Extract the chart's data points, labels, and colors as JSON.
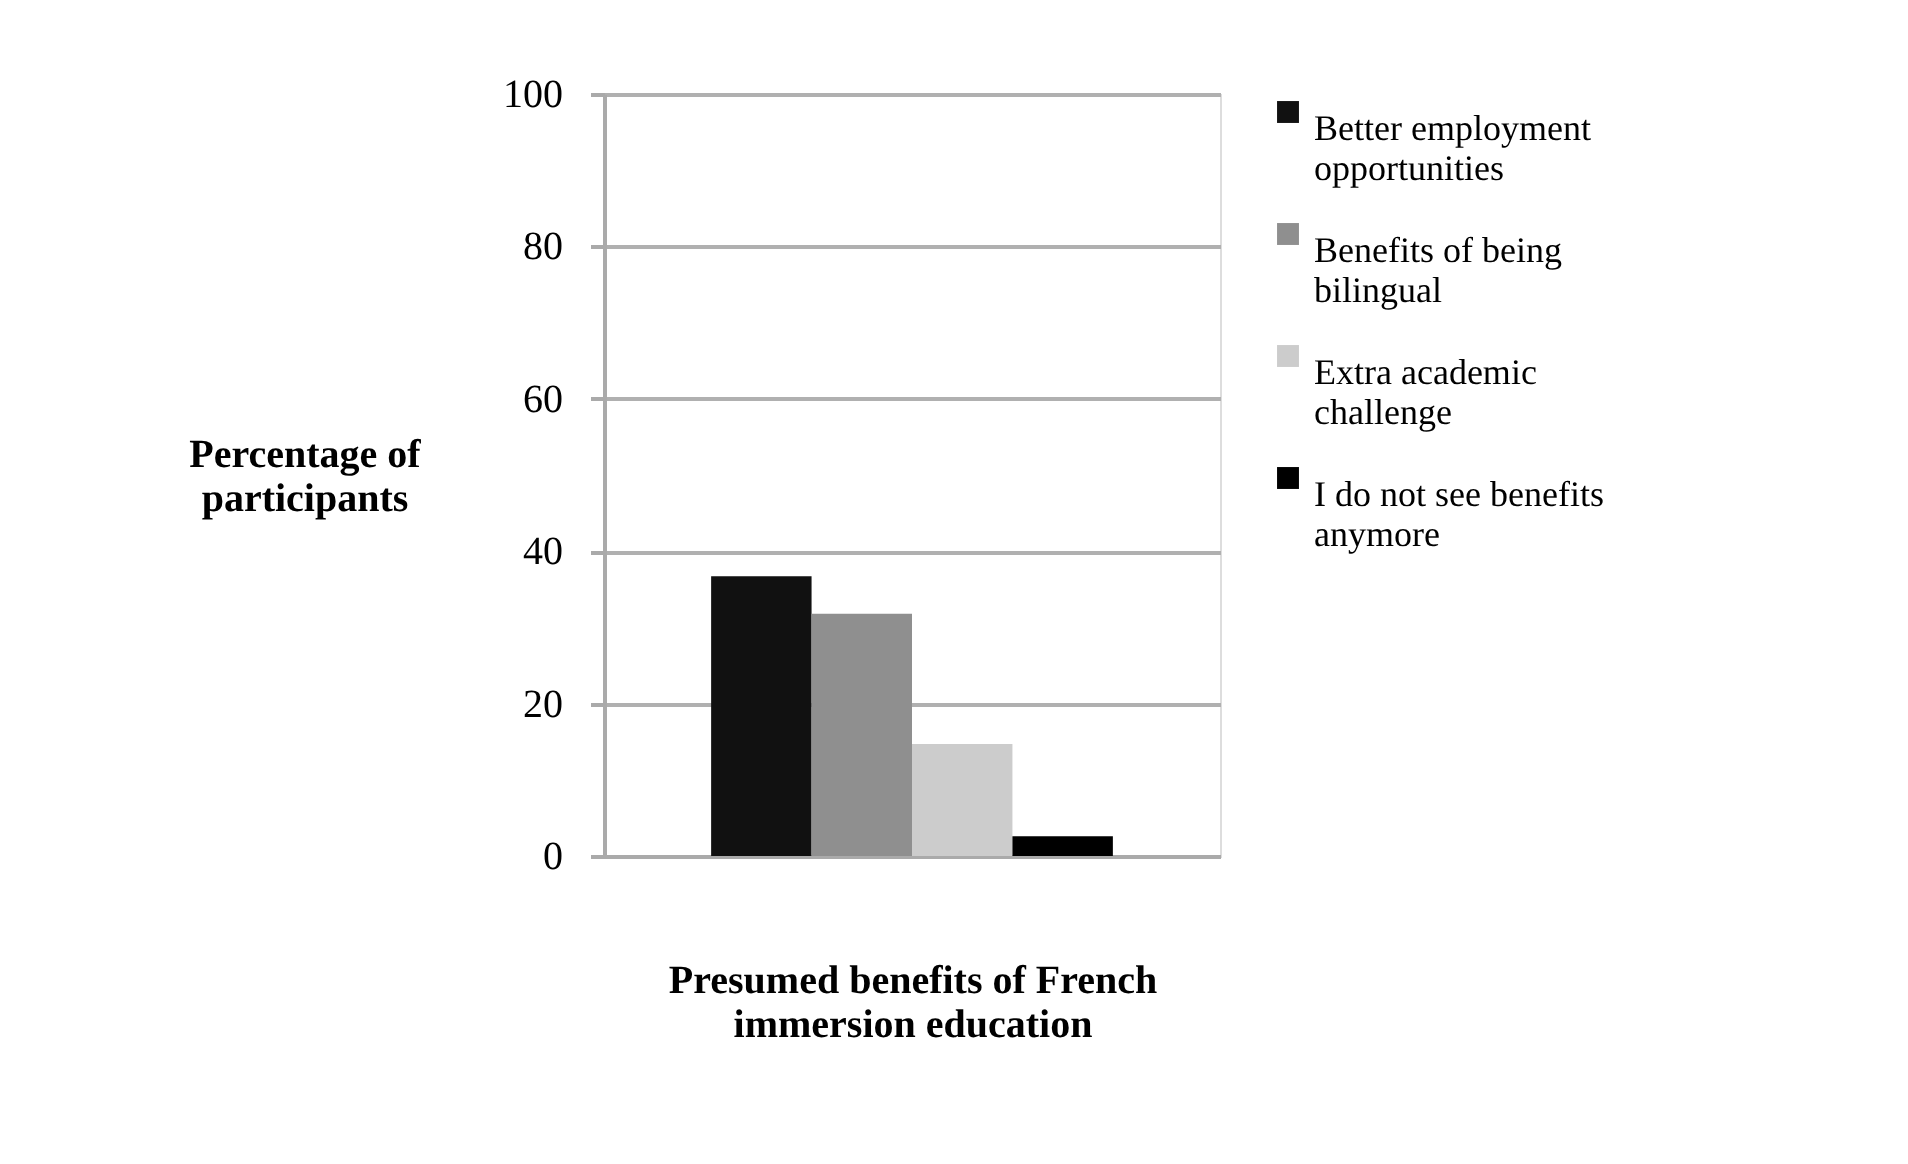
{
  "chart_data": {
    "type": "bar",
    "xlabel": "Presumed benefits of French immersion education",
    "ylabel": "Percentage of participants",
    "categories": [
      null
    ],
    "series": [
      {
        "name": "Better employment opportunities",
        "color": "#111111",
        "values": [
          36.7
        ]
      },
      {
        "name": "Benefits of being bilingual",
        "color": "#8f8f8f",
        "values": [
          31.8
        ]
      },
      {
        "name": "Extra academic challenge",
        "color": "#cccccc",
        "values": [
          14.7
        ]
      },
      {
        "name": "I do not see benefits anymore",
        "color": "#000000",
        "values": [
          2.6
        ]
      }
    ],
    "ylim": [
      0,
      100
    ],
    "yticks": [
      0,
      20,
      40,
      60,
      80,
      100
    ],
    "grid": "y",
    "legend": "right"
  }
}
